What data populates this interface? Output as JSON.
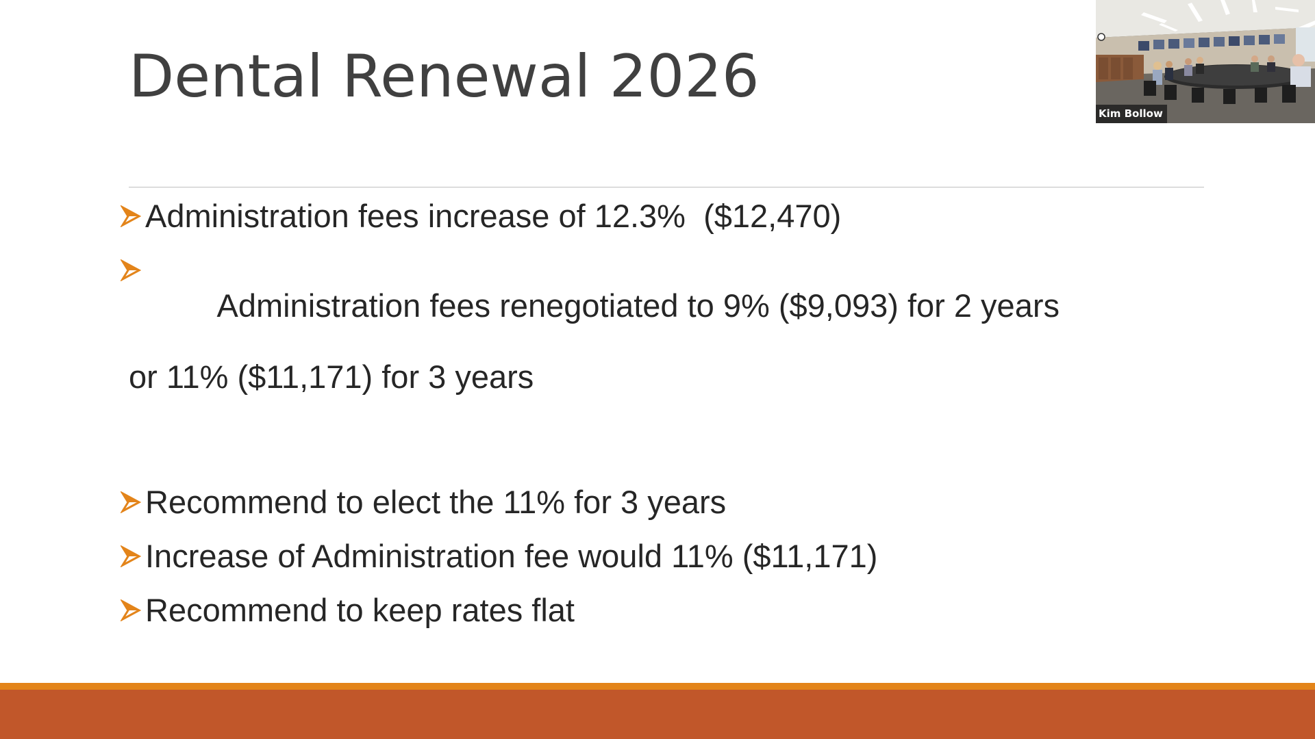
{
  "slide": {
    "title": "Dental Renewal 2026",
    "bullets": [
      {
        "text": "Administration fees increase of 12.3%  ($12,470)"
      },
      {
        "text": "Administration fees renegotiated to 9% ($9,093) for 2 years",
        "continuation": "or 11% ($11,171) for 3 years"
      },
      {
        "text": "Recommend to elect the 11% for 3 years"
      },
      {
        "text": "Increase of Administration fee would 11% ($11,171)"
      },
      {
        "text": "Recommend to keep rates flat"
      }
    ],
    "bullet_icon": "arrowhead-bullet-icon"
  },
  "video": {
    "participant_name": "Kim Bollow",
    "scene": "conference-room-camera-feed"
  },
  "colors": {
    "title_text": "#404040",
    "body_text": "#262626",
    "bullet_arrow": "#e3841a",
    "footer_accent": "#e3841a",
    "footer_bar": "#c1572a",
    "title_rule": "#bfbfbf"
  }
}
